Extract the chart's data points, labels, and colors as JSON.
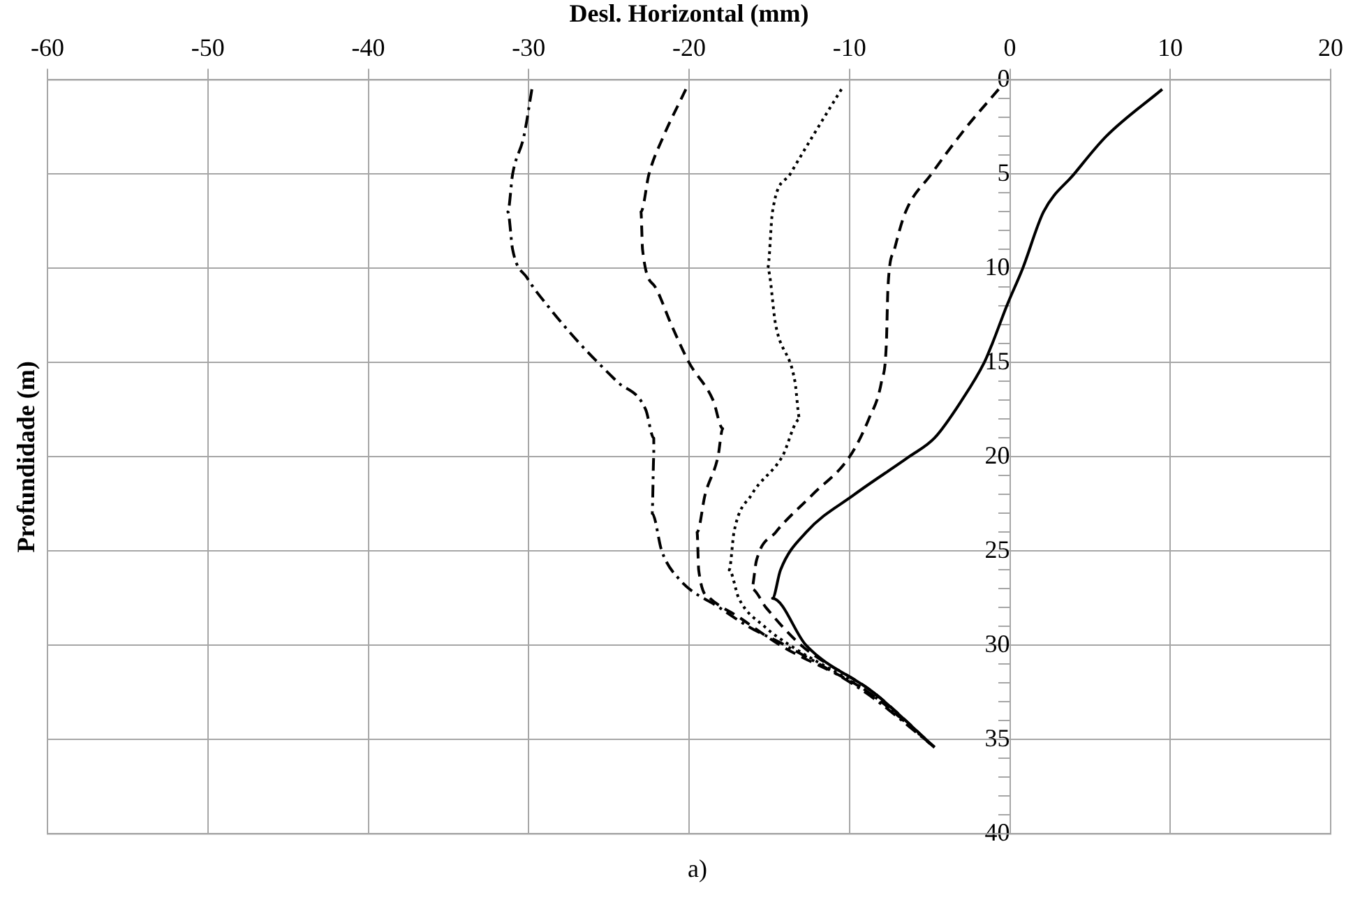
{
  "chart_data": {
    "type": "line",
    "xlabel": "Desl. Horizontal (mm)",
    "ylabel": "Profundidade (m)",
    "annotations": [
      "a)"
    ],
    "xlim": [
      -60,
      20
    ],
    "xticks": [
      -60,
      -50,
      -40,
      -30,
      -20,
      -10,
      0,
      10,
      20
    ],
    "ylim": [
      40,
      0
    ],
    "yticks": [
      0,
      {
        "value": 1,
        "label": null
      },
      {
        "value": 2,
        "label": null
      },
      {
        "value": 3,
        "label": null
      },
      {
        "value": 4,
        "label": null
      },
      5,
      {
        "value": 6,
        "label": null
      },
      {
        "value": 7,
        "label": null
      },
      {
        "value": 8,
        "label": null
      },
      {
        "value": 9,
        "label": null
      },
      10,
      {
        "value": 11,
        "label": null
      },
      {
        "value": 12,
        "label": null
      },
      {
        "value": 13,
        "label": null
      },
      {
        "value": 14,
        "label": null
      },
      15,
      {
        "value": 16,
        "label": null
      },
      {
        "value": 17,
        "label": null
      },
      {
        "value": 18,
        "label": null
      },
      {
        "value": 19,
        "label": null
      },
      20,
      {
        "value": 21,
        "label": null
      },
      {
        "value": 22,
        "label": null
      },
      {
        "value": 23,
        "label": null
      },
      {
        "value": 24,
        "label": null
      },
      25,
      {
        "value": 26,
        "label": null
      },
      {
        "value": 27,
        "label": null
      },
      {
        "value": 28,
        "label": null
      },
      {
        "value": 29,
        "label": null
      },
      30,
      {
        "value": 31,
        "label": null
      },
      {
        "value": 32,
        "label": null
      },
      {
        "value": 33,
        "label": null
      },
      {
        "value": 34,
        "label": null
      },
      35,
      {
        "value": 36,
        "label": null
      },
      {
        "value": 37,
        "label": null
      },
      {
        "value": 38,
        "label": null
      },
      {
        "value": 39,
        "label": null
      },
      40
    ],
    "grid": true,
    "marker": "none",
    "series": [
      {
        "color": "#000000",
        "line_style": "solid",
        "x": [
          9.5,
          6,
          4.0,
          2.1,
          0.8,
          -0.2,
          -1.1,
          -1.6,
          -3.0,
          -4.7,
          -6.3,
          -9.7,
          -12.7,
          -14.3,
          -14.8,
          -12.7,
          -8.5,
          -4.7
        ],
        "values": [
          0.5,
          3,
          5,
          7,
          10,
          12,
          14,
          15,
          17,
          19,
          20,
          22,
          24,
          26,
          27.5,
          30,
          32.5,
          35.4
        ]
      },
      {
        "color": "#000000",
        "line_style": "dashed",
        "x": [
          -0.7,
          -2.7,
          -4.9,
          -6.5,
          -7.2,
          -7.6,
          -7.7,
          -8.0,
          -8.8,
          -10.0,
          -12.3,
          -14.6,
          -15.8,
          -16.1,
          -15.2,
          -13.0,
          -8.5,
          -4.7
        ],
        "values": [
          0.5,
          2.5,
          5,
          7,
          9,
          11,
          14,
          16,
          18,
          20,
          22,
          24,
          25.5,
          27,
          28,
          30,
          32.5,
          35.4
        ]
      },
      {
        "color": "#000000",
        "line_style": "dotted",
        "x": [
          -10.5,
          -12.3,
          -13.7,
          -14.8,
          -15.1,
          -14.6,
          -13.4,
          -13.1,
          -14.2,
          -16.1,
          -17.2,
          -17.5,
          -16.9,
          -15.3,
          -13.7,
          -8.8,
          -4.7
        ],
        "values": [
          0.5,
          3,
          5,
          7,
          10,
          13,
          16,
          18,
          20,
          22,
          24,
          26,
          27.5,
          29,
          30,
          32.5,
          35.4
        ]
      },
      {
        "color": "#000000",
        "line_style": "dashed",
        "x": [
          -20.2,
          -21.6,
          -22.5,
          -23.0,
          -22.9,
          -22.1,
          -21.1,
          -20.0,
          -18.5,
          -17.9,
          -18.2,
          -19.0,
          -19.5,
          -19.4,
          -18.7,
          -16.9,
          -14.3,
          -8.8,
          -4.7
        ],
        "values": [
          0.5,
          3,
          5,
          7,
          9,
          11,
          13,
          15,
          17,
          18.5,
          20,
          22,
          24,
          26,
          27.5,
          28.5,
          30,
          32.5,
          35.4
        ]
      },
      {
        "color": "#000000",
        "line_style": "dashdot",
        "x": [
          -29.8,
          -30.3,
          -31.0,
          -31.3,
          -31.0,
          -30.1,
          -28.8,
          -26.8,
          -24.5,
          -22.7,
          -22.2,
          -22.2,
          -22.3,
          -21.7,
          -20.6,
          -18.1,
          -16.3,
          -14.0,
          -9.0,
          -4.7
        ],
        "values": [
          0.5,
          3,
          5,
          7,
          9,
          10.5,
          12,
          14,
          16,
          17.5,
          19,
          20,
          23,
          25,
          26.5,
          28,
          29,
          30,
          32.5,
          35.4
        ]
      }
    ]
  }
}
